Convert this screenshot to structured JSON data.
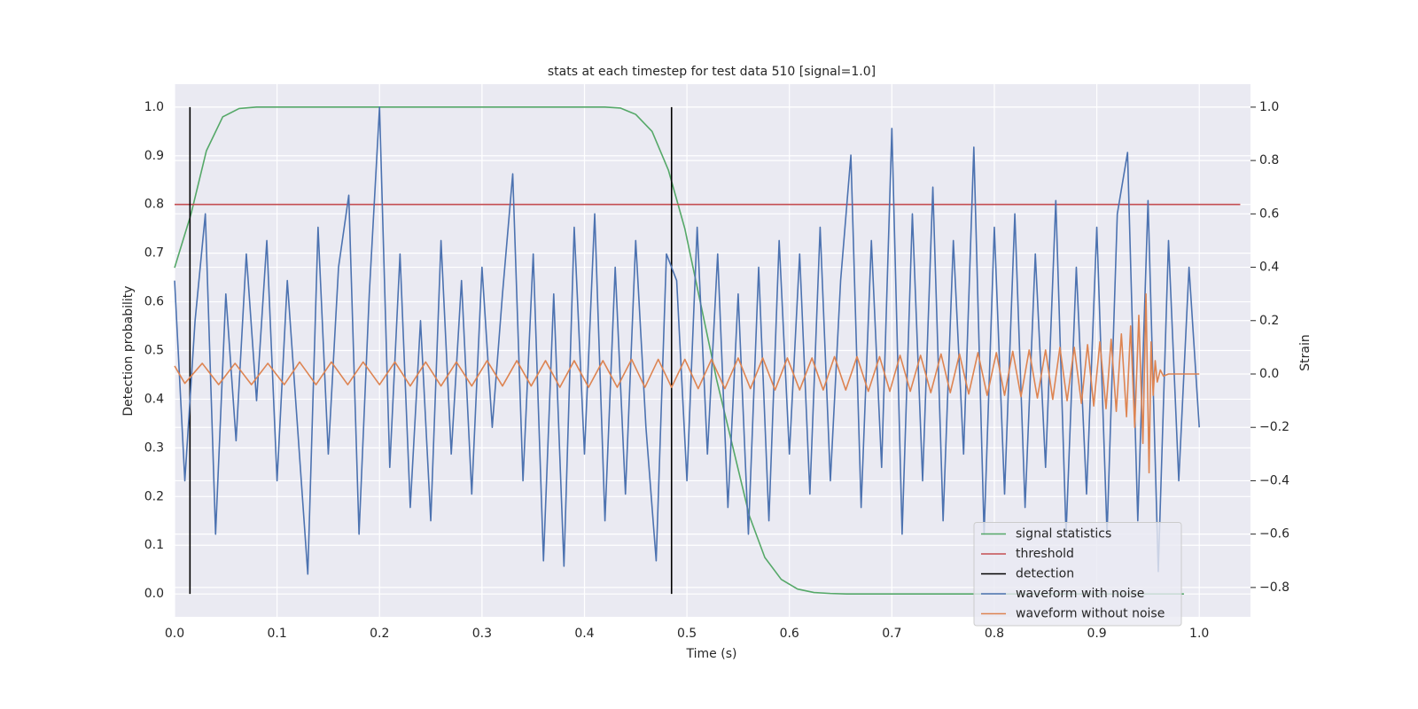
{
  "chart_data": {
    "type": "line",
    "title": "stats at each timestep for test data 510 [signal=1.0]",
    "xlabel": "Time (s)",
    "ylabel": "Detection probability",
    "y2label": "Strain",
    "xlim": [
      0,
      1.05
    ],
    "ylim": [
      -0.047,
      1.047
    ],
    "y2lim": [
      -0.91,
      1.086
    ],
    "xticks": [
      {
        "value": 0,
        "label": "0.0"
      },
      0.1,
      0.2,
      0.3,
      0.4,
      0.5,
      0.6,
      0.7,
      0.8,
      0.9,
      {
        "value": 1,
        "label": "1.0"
      }
    ],
    "yticks": [
      {
        "value": 0,
        "label": "0.0"
      },
      0.1,
      0.2,
      0.3,
      0.4,
      0.5,
      0.6,
      0.7,
      0.8,
      0.9,
      {
        "value": 1,
        "label": "1.0"
      }
    ],
    "y2ticks": [
      {
        "value": -0.8,
        "label": "−0.8"
      },
      {
        "value": -0.6,
        "label": "−0.6"
      },
      {
        "value": -0.4,
        "label": "−0.4"
      },
      {
        "value": -0.2,
        "label": "−0.2"
      },
      {
        "value": 0,
        "label": "0.0"
      },
      0.2,
      0.4,
      0.6,
      0.8,
      {
        "value": 1,
        "label": "1.0"
      }
    ],
    "grid": true,
    "background": "#eaeaf2",
    "legend": "lower right",
    "series": [
      {
        "name": "signal statistics",
        "color": "#55a868",
        "x": [
          0,
          0.016,
          0.031,
          0.047,
          0.063,
          0.08,
          0.2,
          0.3,
          0.42,
          0.435,
          0.45,
          0.466,
          0.482,
          0.498,
          0.513,
          0.529,
          0.545,
          0.561,
          0.576,
          0.592,
          0.608,
          0.624,
          0.64,
          0.656,
          0.8,
          0.985
        ],
        "values": [
          0.67,
          0.78,
          0.91,
          0.98,
          0.997,
          1.0,
          1.0,
          1.0,
          1.0,
          0.998,
          0.985,
          0.95,
          0.87,
          0.75,
          0.6,
          0.44,
          0.3,
          0.16,
          0.075,
          0.03,
          0.01,
          0.003,
          0.001,
          0,
          0,
          0
        ]
      },
      {
        "name": "threshold",
        "color": "#c44e52",
        "x": [
          0,
          1.04
        ],
        "values": [
          0.8,
          0.8
        ]
      },
      {
        "name": "detection",
        "color": "#000000",
        "x": [
          0.015,
          0.015,
          null,
          0.485,
          0.485
        ],
        "values": [
          0,
          1,
          null,
          0,
          1
        ]
      },
      {
        "name": "waveform with noise",
        "color": "#4c72b0",
        "axis": "y2",
        "x": [
          0,
          0.01,
          0.02,
          0.03,
          0.04,
          0.05,
          0.06,
          0.07,
          0.08,
          0.09,
          0.1,
          0.11,
          0.12,
          0.13,
          0.14,
          0.15,
          0.16,
          0.17,
          0.18,
          0.19,
          0.2,
          0.21,
          0.22,
          0.23,
          0.24,
          0.25,
          0.26,
          0.27,
          0.28,
          0.29,
          0.3,
          0.31,
          0.32,
          0.33,
          0.34,
          0.35,
          0.36,
          0.37,
          0.38,
          0.39,
          0.4,
          0.41,
          0.42,
          0.43,
          0.44,
          0.45,
          0.46,
          0.47,
          0.48,
          0.49,
          0.5,
          0.51,
          0.52,
          0.53,
          0.54,
          0.55,
          0.56,
          0.57,
          0.58,
          0.59,
          0.6,
          0.61,
          0.62,
          0.63,
          0.64,
          0.65,
          0.66,
          0.67,
          0.68,
          0.69,
          0.7,
          0.71,
          0.72,
          0.73,
          0.74,
          0.75,
          0.76,
          0.77,
          0.78,
          0.79,
          0.8,
          0.81,
          0.82,
          0.83,
          0.84,
          0.85,
          0.86,
          0.87,
          0.88,
          0.89,
          0.9,
          0.91,
          0.92,
          0.93,
          0.94,
          0.95,
          0.96,
          0.97,
          0.98,
          0.99,
          1.0
        ],
        "values": [
          0.35,
          -0.4,
          0.2,
          0.6,
          -0.6,
          0.3,
          -0.25,
          0.45,
          -0.1,
          0.5,
          -0.4,
          0.35,
          -0.2,
          -0.75,
          0.55,
          -0.3,
          0.4,
          0.67,
          -0.6,
          0.3,
          1.0,
          -0.35,
          0.45,
          -0.5,
          0.2,
          -0.55,
          0.5,
          -0.3,
          0.35,
          -0.45,
          0.4,
          -0.2,
          0.3,
          0.75,
          -0.4,
          0.45,
          -0.7,
          0.3,
          -0.72,
          0.55,
          -0.3,
          0.6,
          -0.55,
          0.4,
          -0.45,
          0.5,
          -0.2,
          -0.7,
          0.45,
          0.35,
          -0.4,
          0.55,
          -0.3,
          0.45,
          -0.5,
          0.3,
          -0.6,
          0.4,
          -0.55,
          0.5,
          -0.3,
          0.45,
          -0.45,
          0.55,
          -0.4,
          0.35,
          0.82,
          -0.5,
          0.5,
          -0.35,
          0.92,
          -0.6,
          0.6,
          -0.4,
          0.7,
          -0.55,
          0.5,
          -0.3,
          0.85,
          -0.6,
          0.55,
          -0.45,
          0.6,
          -0.5,
          0.45,
          -0.35,
          0.65,
          -0.6,
          0.4,
          -0.45,
          0.55,
          -0.6,
          0.6,
          0.83,
          -0.55,
          0.65,
          -0.74,
          0.5,
          -0.4,
          0.4,
          -0.2
        ]
      },
      {
        "name": "waveform without noise",
        "color": "#dd8452",
        "axis": "y2",
        "x": [
          0,
          0.01,
          0.027,
          0.043,
          0.059,
          0.075,
          0.091,
          0.107,
          0.122,
          0.138,
          0.153,
          0.169,
          0.184,
          0.2,
          0.215,
          0.23,
          0.245,
          0.26,
          0.275,
          0.29,
          0.305,
          0.32,
          0.334,
          0.348,
          0.362,
          0.376,
          0.39,
          0.404,
          0.418,
          0.432,
          0.446,
          0.459,
          0.472,
          0.485,
          0.498,
          0.511,
          0.524,
          0.537,
          0.55,
          0.562,
          0.574,
          0.586,
          0.598,
          0.61,
          0.622,
          0.633,
          0.644,
          0.655,
          0.666,
          0.677,
          0.688,
          0.698,
          0.708,
          0.718,
          0.728,
          0.738,
          0.748,
          0.757,
          0.766,
          0.775,
          0.784,
          0.793,
          0.802,
          0.81,
          0.818,
          0.826,
          0.834,
          0.842,
          0.85,
          0.857,
          0.864,
          0.871,
          0.878,
          0.885,
          0.891,
          0.897,
          0.903,
          0.909,
          0.914,
          0.919,
          0.924,
          0.929,
          0.933,
          0.937,
          0.941,
          0.945,
          0.948,
          0.951,
          0.953,
          0.955,
          0.957,
          0.959,
          0.962,
          0.965,
          0.97,
          1.0
        ],
        "values": [
          0.03,
          -0.035,
          0.04,
          -0.04,
          0.04,
          -0.04,
          0.04,
          -0.04,
          0.045,
          -0.04,
          0.045,
          -0.04,
          0.045,
          -0.04,
          0.045,
          -0.045,
          0.045,
          -0.045,
          0.045,
          -0.045,
          0.05,
          -0.045,
          0.05,
          -0.045,
          0.05,
          -0.05,
          0.05,
          -0.05,
          0.05,
          -0.05,
          0.055,
          -0.05,
          0.055,
          -0.05,
          0.055,
          -0.055,
          0.055,
          -0.055,
          0.06,
          -0.055,
          0.06,
          -0.06,
          0.06,
          -0.06,
          0.06,
          -0.06,
          0.065,
          -0.06,
          0.065,
          -0.065,
          0.065,
          -0.065,
          0.07,
          -0.065,
          0.07,
          -0.07,
          0.075,
          -0.07,
          0.075,
          -0.075,
          0.08,
          -0.08,
          0.08,
          -0.08,
          0.085,
          -0.085,
          0.09,
          -0.09,
          0.09,
          -0.095,
          0.1,
          -0.1,
          0.1,
          -0.11,
          0.11,
          -0.12,
          0.12,
          -0.13,
          0.13,
          -0.14,
          0.15,
          -0.16,
          0.18,
          -0.2,
          0.22,
          -0.26,
          0.3,
          -0.37,
          0.12,
          -0.08,
          0.05,
          -0.03,
          0.015,
          -0.008,
          0,
          0
        ]
      }
    ]
  }
}
